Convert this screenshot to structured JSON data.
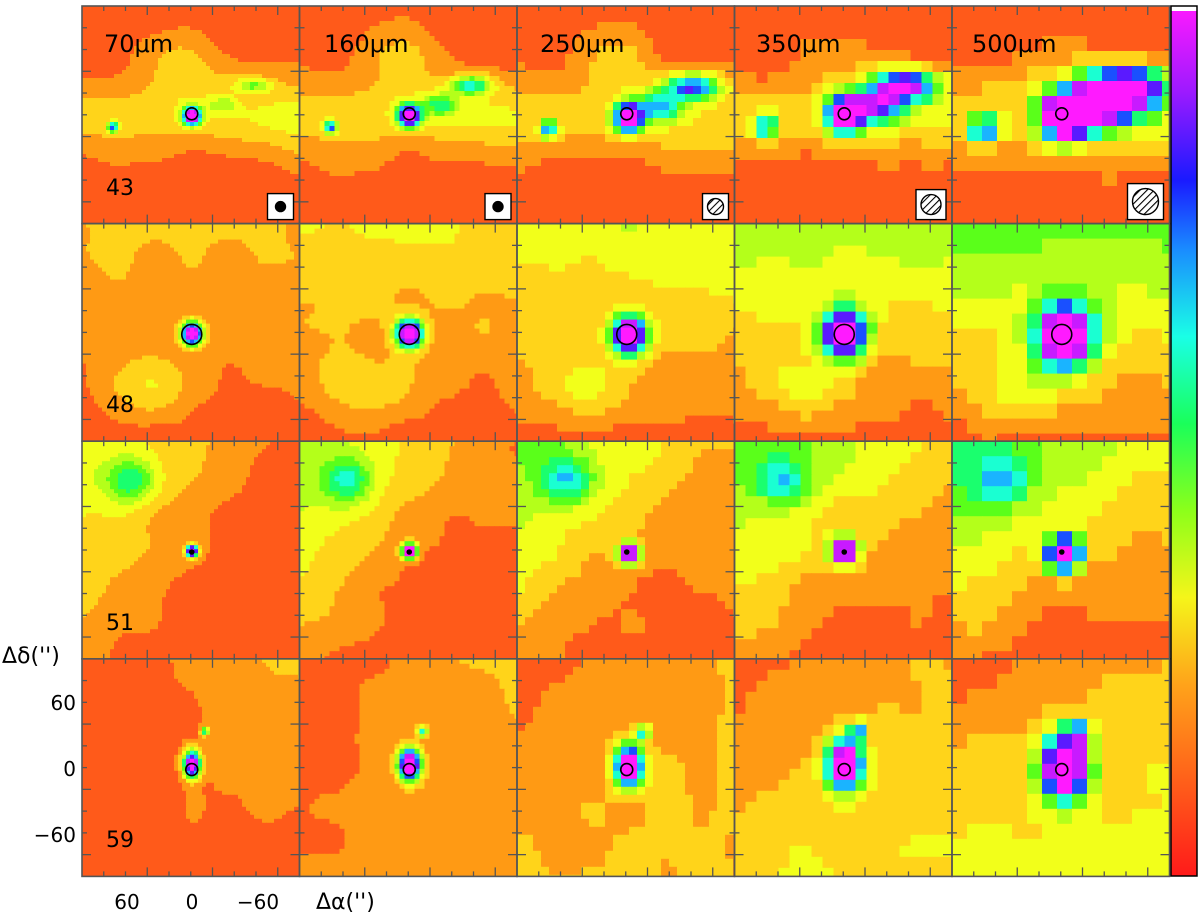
{
  "figure": {
    "wavelengths": [
      "70μm",
      "160μm",
      "250μm",
      "350μm",
      "500μm"
    ],
    "sources": [
      "43",
      "48",
      "51",
      "59"
    ],
    "y_axis_label": "Δδ('')",
    "x_axis_label": "Δα('')",
    "y_ticks": [
      "60",
      "0",
      "−60"
    ],
    "x_ticks": [
      "60",
      "0",
      "−60"
    ],
    "beam_icon_name": "beam-size-icon",
    "colormap": [
      "#ff1a1a",
      "#ff5a1a",
      "#ff9a14",
      "#ffd41a",
      "#f2ff1a",
      "#b4ff1a",
      "#5aff1a",
      "#1aff6e",
      "#1affd2",
      "#1ab4ff",
      "#1a50ff",
      "#5a1aff",
      "#c81aff",
      "#ff1aff"
    ]
  }
}
